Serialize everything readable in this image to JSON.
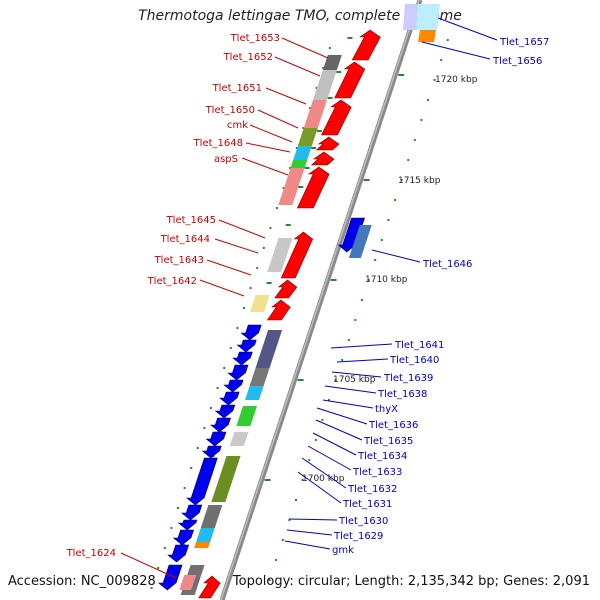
{
  "title": "Thermotoga lettingae TMO, complete genome",
  "footer": {
    "accession": "Accession: NC_009828",
    "summary": "Topology: circular; Length: 2,135,342 bp; Genes: 2,091"
  },
  "colors": {
    "forward_label": "#cc0000",
    "reverse_label": "#0000cc",
    "backbone": "#888888",
    "tick": "#2a8a2a"
  },
  "scale_labels": [
    {
      "text": "1720 kbp",
      "position_kbp": 1720
    },
    {
      "text": "1715 kbp",
      "position_kbp": 1715
    },
    {
      "text": "1710 kbp",
      "position_kbp": 1710
    },
    {
      "text": "1705 kbp",
      "position_kbp": 1705
    },
    {
      "text": "1700 kbp",
      "position_kbp": 1700
    }
  ],
  "forward_labels": [
    "Tlet_1653",
    "Tlet_1652",
    "Tlet_1651",
    "Tlet_1650",
    "cmk",
    "Tlet_1648",
    "aspS",
    "Tlet_1645",
    "Tlet_1644",
    "Tlet_1643",
    "Tlet_1642",
    "Tlet_1624"
  ],
  "reverse_labels": [
    "Tlet_1657",
    "Tlet_1656",
    "Tlet_1646",
    "Tlet_1641",
    "Tlet_1640",
    "Tlet_1639",
    "Tlet_1638",
    "thyX",
    "Tlet_1636",
    "Tlet_1635",
    "Tlet_1634",
    "Tlet_1633",
    "Tlet_1632",
    "Tlet_1631",
    "Tlet_1630",
    "Tlet_1629",
    "gmk"
  ]
}
